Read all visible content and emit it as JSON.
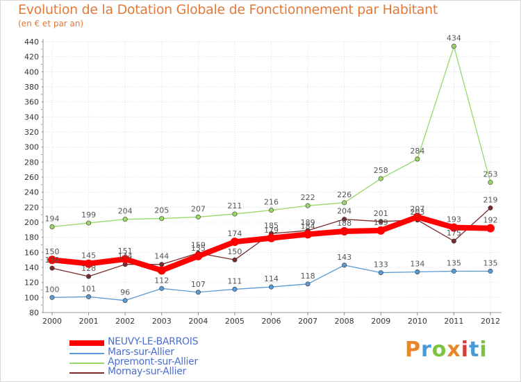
{
  "header": {
    "title": "Evolution de la Dotation Globale de Fonctionnement par Habitant",
    "subtitle": "(en € et par an)"
  },
  "logo": {
    "text": "Proxiti",
    "colors": [
      "#e8862a",
      "#4a9ad8",
      "#7cc43e",
      "#e8862a",
      "#d63b3b",
      "#4a9ad8",
      "#7cc43e"
    ]
  },
  "chart_data": {
    "type": "line",
    "x": [
      2000,
      2001,
      2002,
      2003,
      2004,
      2005,
      2006,
      2007,
      2008,
      2009,
      2010,
      2011,
      2012
    ],
    "ylim": [
      80,
      440
    ],
    "yticks": [
      80,
      100,
      120,
      140,
      160,
      180,
      200,
      220,
      240,
      260,
      280,
      300,
      320,
      340,
      360,
      380,
      400,
      420,
      440
    ],
    "grid": true,
    "legend_position": "bottom-left",
    "series": [
      {
        "name": "NEUVY-LE-BARROIS",
        "color": "#ff0000",
        "values": [
          150,
          145,
          151,
          136,
          155,
          174,
          179,
          184,
          188,
          189,
          207,
          193,
          192
        ],
        "labels": [
          "150",
          "145",
          "151",
          "",
          "155",
          "174",
          "179",
          "184",
          "188",
          "189",
          "207",
          "193",
          "192"
        ]
      },
      {
        "name": "Mars-sur-Allier",
        "color": "#5b9bd5",
        "values": [
          100,
          101,
          96,
          112,
          107,
          111,
          114,
          118,
          143,
          133,
          134,
          135,
          135
        ],
        "labels": [
          "100",
          "101",
          "96",
          "112",
          "107",
          "111",
          "114",
          "118",
          "143",
          "133",
          "134",
          "135",
          "135"
        ]
      },
      {
        "name": "Apremont-sur-Allier",
        "color": "#9ad86a",
        "values": [
          194,
          199,
          204,
          205,
          207,
          211,
          216,
          222,
          226,
          258,
          284,
          434,
          253
        ],
        "labels": [
          "194",
          "199",
          "204",
          "205",
          "207",
          "211",
          "216",
          "222",
          "226",
          "258",
          "284",
          "434",
          "253"
        ]
      },
      {
        "name": "Mornay-sur-Allier",
        "color": "#7a2a2a",
        "values": [
          139,
          128,
          144,
          144,
          159,
          150,
          185,
          189,
          204,
          201,
          203,
          175,
          219
        ],
        "labels": [
          "139",
          "128",
          "144",
          "144",
          "159",
          "150",
          "185",
          "189",
          "204",
          "201",
          "203",
          "175",
          "219"
        ]
      }
    ]
  }
}
